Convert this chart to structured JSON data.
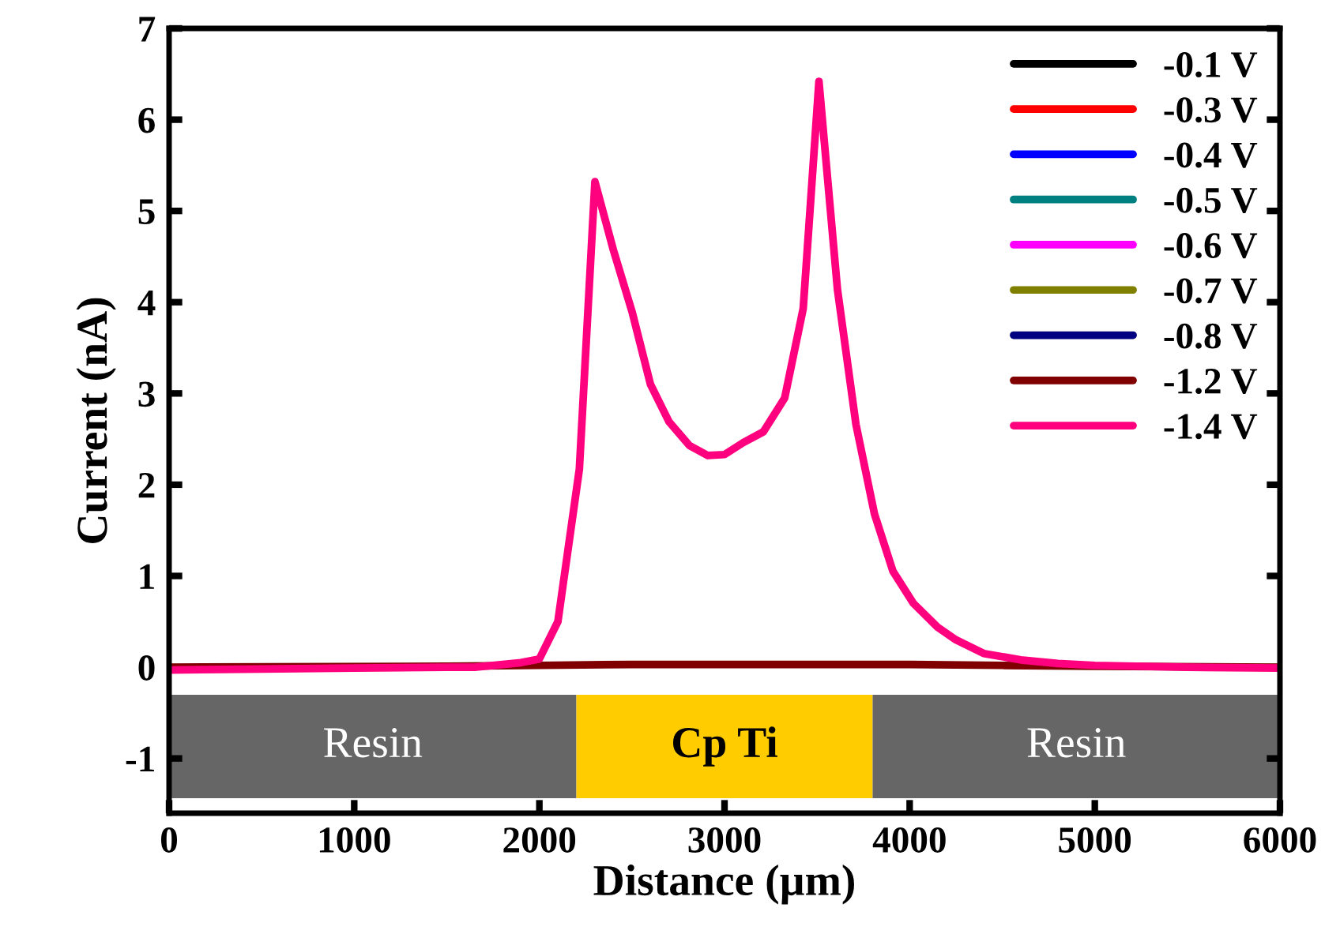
{
  "chart_data": {
    "type": "line",
    "xlabel": "Distance (µm)",
    "ylabel": "Current (nA)",
    "xlim": [
      0,
      6000
    ],
    "xticks": [
      0,
      1000,
      2000,
      3000,
      4000,
      5000,
      6000
    ],
    "ylim": [
      -1.6,
      7
    ],
    "yticks": [
      -1,
      0,
      1,
      2,
      3,
      4,
      5,
      6,
      7
    ],
    "grid": false,
    "legend": "top right",
    "marker": "none",
    "line_style": "solid",
    "bands": [
      {
        "axis": "x",
        "from": 0,
        "to": 2200,
        "label": "Resin",
        "color": "#666666"
      },
      {
        "axis": "x",
        "from": 2200,
        "to": 3800,
        "label": "Cp Ti",
        "color": "#ffcc00"
      },
      {
        "axis": "x",
        "from": 3800,
        "to": 6000,
        "label": "Resin",
        "color": "#666666"
      }
    ],
    "series": [
      {
        "name": "-0.1 V",
        "color": "#000000"
      },
      {
        "name": "-0.3 V",
        "color": "#ff0000"
      },
      {
        "name": "-0.4 V",
        "color": "#0000ff"
      },
      {
        "name": "-0.5 V",
        "color": "#008080"
      },
      {
        "name": "-0.6 V",
        "color": "#ff00ff"
      },
      {
        "name": "-0.7 V",
        "color": "#808000"
      },
      {
        "name": "-0.8 V",
        "color": "#000080"
      },
      {
        "name": "-1.2 V",
        "color": "#800000",
        "x": [
          0,
          1500,
          2000,
          2500,
          3000,
          3500,
          4000,
          4500,
          5000,
          6000
        ],
        "values": [
          0,
          0.01,
          0.02,
          0.03,
          0.03,
          0.03,
          0.03,
          0.02,
          0.01,
          0
        ]
      },
      {
        "name": "-1.4 V",
        "color": "#ff007f",
        "x": [
          0,
          500,
          1000,
          1500,
          1650,
          1900,
          2000,
          2100,
          2216,
          2300,
          2400,
          2500,
          2600,
          2700,
          2810,
          2910,
          3000,
          3100,
          3210,
          3325,
          3425,
          3510,
          3610,
          3710,
          3810,
          3910,
          4020,
          4150,
          4250,
          4400,
          4600,
          4800,
          5000,
          5500,
          6000
        ],
        "values": [
          -0.03,
          -0.02,
          -0.01,
          0,
          0,
          0.05,
          0.09,
          0.5,
          2.17,
          5.32,
          4.57,
          3.9,
          3.1,
          2.69,
          2.43,
          2.32,
          2.33,
          2.46,
          2.58,
          2.95,
          3.93,
          6.42,
          4.14,
          2.66,
          1.68,
          1.05,
          0.7,
          0.44,
          0.3,
          0.15,
          0.08,
          0.04,
          0.02,
          0,
          -0.01
        ]
      }
    ]
  }
}
